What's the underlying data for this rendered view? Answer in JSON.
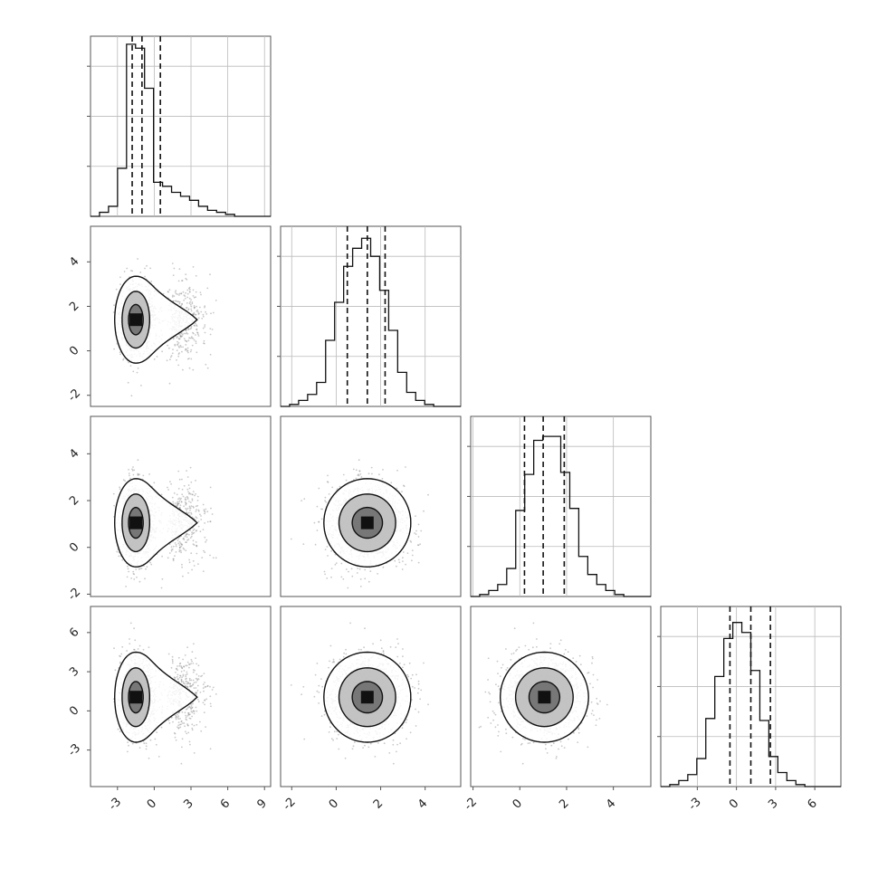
{
  "chart_data": {
    "type": "corner",
    "title": "",
    "parameters": [
      {
        "index": 0,
        "label": "",
        "range": [
          -5.2,
          9.5
        ],
        "ticks": [
          -3,
          0,
          3,
          6,
          9
        ],
        "tick_labels": [
          "-3",
          "0",
          "3",
          "6",
          "9"
        ],
        "quantiles": [
          -1.8,
          -1.0,
          0.5
        ]
      },
      {
        "index": 1,
        "label": "",
        "range": [
          -2.5,
          5.6
        ],
        "ticks": [
          -2,
          0,
          2,
          4
        ],
        "tick_labels": [
          "-2",
          "0",
          "2",
          "4"
        ],
        "quantiles": [
          0.5,
          1.4,
          2.2
        ]
      },
      {
        "index": 2,
        "label": "",
        "range": [
          -2.1,
          5.6
        ],
        "ticks": [
          -2,
          0,
          2,
          4
        ],
        "tick_labels": [
          "-2",
          "0",
          "2",
          "4"
        ],
        "quantiles": [
          0.2,
          1.0,
          1.9
        ]
      },
      {
        "index": 3,
        "label": "",
        "range": [
          -5.8,
          8.0
        ],
        "ticks": [
          -3,
          0,
          3,
          6
        ],
        "tick_labels": [
          "-3",
          "0",
          "3",
          "6"
        ],
        "quantiles": [
          -0.5,
          1.1,
          2.6
        ]
      }
    ],
    "histograms": [
      {
        "param": 0,
        "edges_start": -5.2,
        "bin_width": 0.735,
        "counts": [
          0,
          0.02,
          0.05,
          0.24,
          0.86,
          0.84,
          0.64,
          0.17,
          0.15,
          0.12,
          0.1,
          0.08,
          0.05,
          0.03,
          0.02,
          0.01,
          0,
          0,
          0,
          0
        ]
      },
      {
        "param": 1,
        "edges_start": -2.5,
        "bin_width": 0.405,
        "counts": [
          0,
          0.01,
          0.03,
          0.06,
          0.12,
          0.33,
          0.52,
          0.7,
          0.79,
          0.84,
          0.75,
          0.58,
          0.38,
          0.17,
          0.07,
          0.03,
          0.01,
          0,
          0,
          0
        ]
      },
      {
        "param": 2,
        "edges_start": -2.1,
        "bin_width": 0.385,
        "counts": [
          0,
          0.01,
          0.03,
          0.06,
          0.14,
          0.43,
          0.61,
          0.78,
          0.8,
          0.8,
          0.62,
          0.44,
          0.2,
          0.11,
          0.06,
          0.03,
          0.01,
          0,
          0,
          0
        ]
      },
      {
        "param": 3,
        "edges_start": -5.8,
        "bin_width": 0.69,
        "counts": [
          0,
          0.01,
          0.03,
          0.06,
          0.14,
          0.34,
          0.55,
          0.74,
          0.82,
          0.77,
          0.58,
          0.33,
          0.15,
          0.07,
          0.03,
          0.01,
          0,
          0,
          0,
          0
        ]
      }
    ],
    "distributions": [
      {
        "param": 0,
        "kind": "skewed",
        "mode": -1.5,
        "sd_left": 0.6,
        "sd_right": 0.9,
        "tail_fraction": 0.28,
        "tail_mean": 1.5,
        "tail_sd": 1.4
      },
      {
        "param": 1,
        "kind": "normal",
        "mean": 1.4,
        "sd": 0.85
      },
      {
        "param": 2,
        "kind": "normal",
        "mean": 1.05,
        "sd": 0.82
      },
      {
        "param": 3,
        "kind": "normal",
        "mean": 1.05,
        "sd": 1.5
      }
    ],
    "contour_levels": 3,
    "points_per_panel": 1400,
    "grid": true
  }
}
